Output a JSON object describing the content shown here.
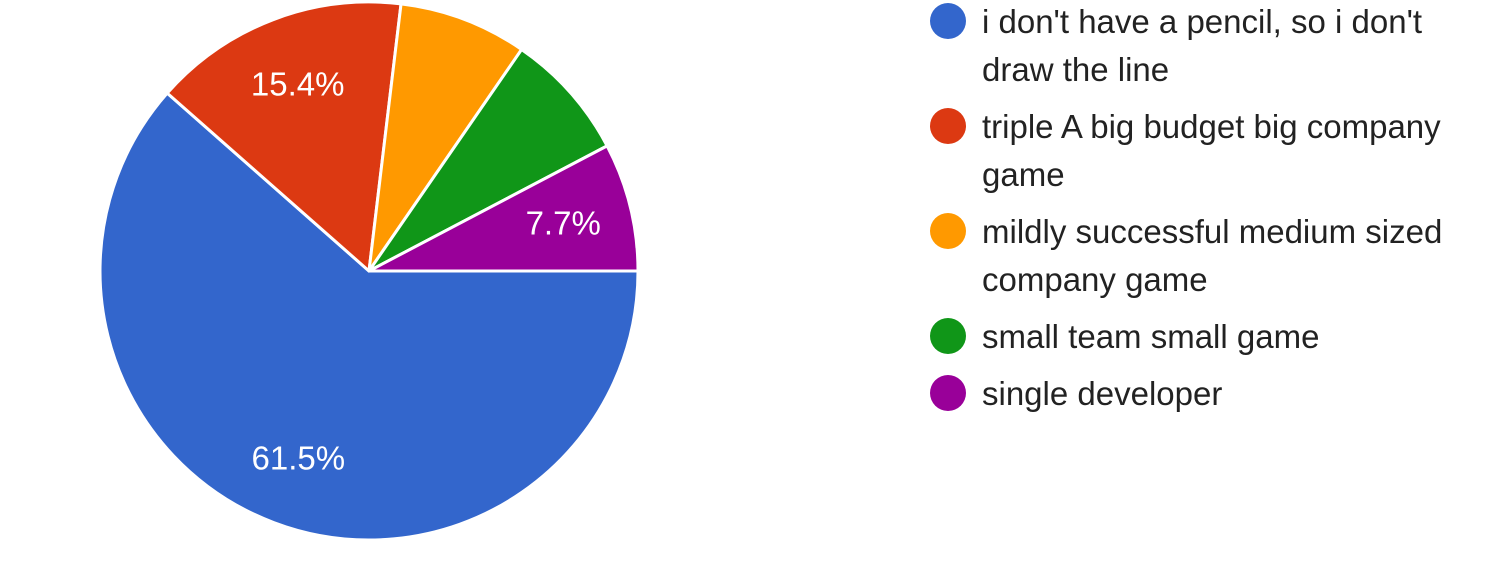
{
  "chart_data": {
    "type": "pie",
    "title": "",
    "legend_position": "right",
    "slices": [
      {
        "label": "i don't have a pencil, so i don't draw the line",
        "value": 61.5,
        "color": "#3366cc",
        "data_label": "61.5%"
      },
      {
        "label": "triple A big budget big company game",
        "value": 15.4,
        "color": "#dc3912",
        "data_label": "15.4%"
      },
      {
        "label": "mildly successful medium sized company game",
        "value": 7.7,
        "color": "#ff9900",
        "data_label": ""
      },
      {
        "label": "small team small game",
        "value": 7.7,
        "color": "#109618",
        "data_label": ""
      },
      {
        "label": "single developer",
        "value": 7.7,
        "color": "#990099",
        "data_label": "7.7%"
      }
    ]
  }
}
